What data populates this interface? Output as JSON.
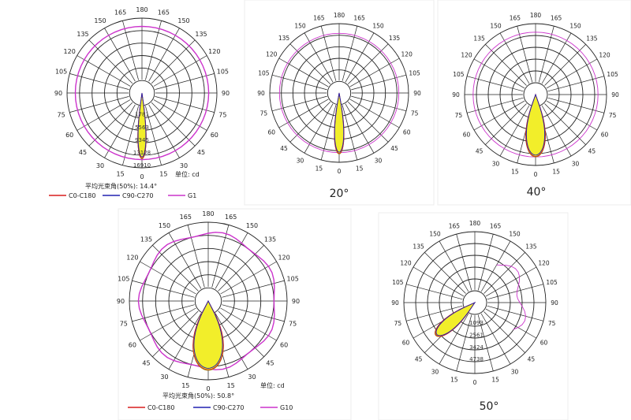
{
  "angle_labels_left": [
    "180",
    "165",
    "150",
    "135",
    "120",
    "105",
    "90",
    "75",
    "60",
    "45",
    "30",
    "15",
    "0"
  ],
  "angle_labels_right": [
    "165",
    "150",
    "135",
    "120",
    "105",
    "90",
    "75",
    "60",
    "45",
    "30",
    "15"
  ],
  "colors": {
    "c0": "#d81e1e",
    "c90": "#2020b0",
    "g": "#cc33cc",
    "fill": "#f2ee2a",
    "fill_stroke": "#9a8a10",
    "grid": "#222222"
  },
  "chart_data": [
    {
      "type": "polar",
      "title": "",
      "caption": "",
      "note_unit": "单位: cd",
      "note_beam": "平均光束角(50%): 14.4°",
      "legend": [
        "C0-C180",
        "C90-C270",
        "G1"
      ],
      "ring_values": [
        "1781",
        "5563",
        "9345",
        "13128",
        "16910"
      ],
      "beam_angle_deg": 14.4,
      "tilt_deg": 0,
      "g_ring_frac": 0.89
    },
    {
      "type": "polar",
      "title": "",
      "caption": "20°",
      "note_unit": "",
      "note_beam": "",
      "legend": [],
      "ring_values": [],
      "beam_angle_deg": 18,
      "tilt_deg": 0,
      "g_ring_frac": 0.86
    },
    {
      "type": "polar",
      "title": "",
      "caption": "40°",
      "note_unit": "",
      "note_beam": "",
      "legend": [],
      "ring_values": [],
      "beam_angle_deg": 36,
      "tilt_deg": 0,
      "g_ring_frac": 0.88
    },
    {
      "type": "polar",
      "title": "",
      "caption": "",
      "note_unit": "单位: cd",
      "note_beam": "平均光束角(50%): 50.8°",
      "legend": [
        "C0-C180",
        "C90-C270",
        "G10"
      ],
      "ring_values": [],
      "beam_angle_deg": 50.8,
      "tilt_deg": 0,
      "g_ring_frac": 0.86
    },
    {
      "type": "polar",
      "title": "",
      "caption": "50°",
      "note_unit": "",
      "note_beam": "",
      "legend": [],
      "ring_values": [
        "1093",
        "2561",
        "3424",
        "4738"
      ],
      "beam_angle_deg": 30,
      "tilt_deg": -50,
      "g_ring_frac": 0.75
    }
  ]
}
